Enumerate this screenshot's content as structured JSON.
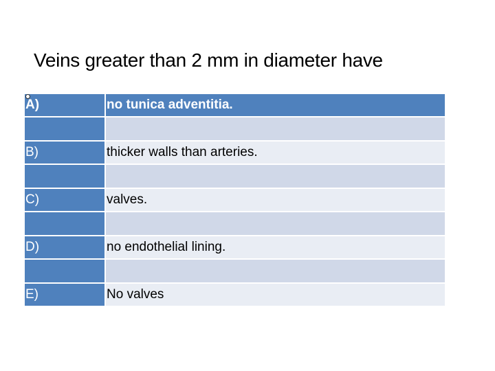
{
  "slide": {
    "title": "Veins greater than 2 mm in diameter have",
    "options": [
      {
        "letter": "A)",
        "text": "no tunica adventitia."
      },
      {
        "letter": "B)",
        "text": "thicker walls than arteries."
      },
      {
        "letter": "C)",
        "text": "valves."
      },
      {
        "letter": "D)",
        "text": "no endothelial lining."
      },
      {
        "letter": "E)",
        "text": "No valves"
      }
    ],
    "colors": {
      "header": "#4f81bd",
      "row_light": "#e9edf4",
      "row_dark": "#d0d8e8"
    }
  }
}
